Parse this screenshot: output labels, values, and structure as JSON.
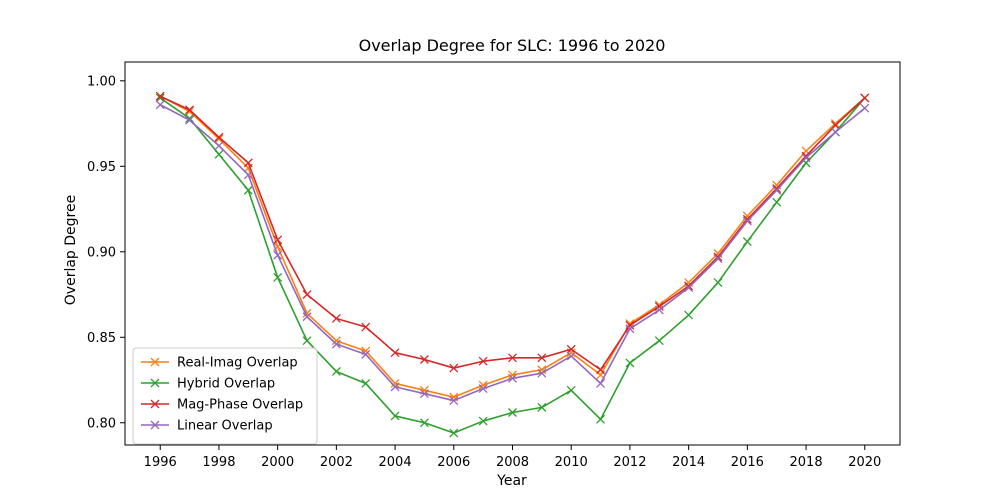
{
  "chart_data": {
    "type": "line",
    "title": "Overlap Degree for SLC: 1996 to 2020",
    "xlabel": "Year",
    "ylabel": "Overlap Degree",
    "xlim": [
      1994.8,
      2021.2
    ],
    "ylim": [
      0.787,
      1.011
    ],
    "x_ticks": [
      1996,
      1998,
      2000,
      2002,
      2004,
      2006,
      2008,
      2010,
      2012,
      2014,
      2016,
      2018,
      2020
    ],
    "x_tick_labels": [
      "1996",
      "1998",
      "2000",
      "2002",
      "2004",
      "2006",
      "2008",
      "2010",
      "2012",
      "2014",
      "2016",
      "2018",
      "2020"
    ],
    "y_ticks": [
      0.8,
      0.85,
      0.9,
      0.95,
      1.0
    ],
    "y_tick_labels": [
      "0.80",
      "0.85",
      "0.90",
      "0.95",
      "1.00"
    ],
    "grid": false,
    "legend_position": "lower-left",
    "marker": "x",
    "x": [
      1996,
      1997,
      1998,
      1999,
      2000,
      2001,
      2002,
      2003,
      2004,
      2005,
      2006,
      2007,
      2008,
      2009,
      2010,
      2011,
      2012,
      2013,
      2014,
      2015,
      2016,
      2017,
      2018,
      2019,
      2020
    ],
    "series": [
      {
        "name": "Real-Imag Overlap",
        "color": "#ff7f0e",
        "values": [
          0.991,
          0.982,
          0.966,
          0.949,
          0.903,
          0.864,
          0.848,
          0.842,
          0.823,
          0.819,
          0.815,
          0.822,
          0.828,
          0.831,
          0.841,
          0.828,
          0.858,
          0.869,
          0.882,
          0.899,
          0.921,
          0.939,
          0.959,
          0.975,
          0.99
        ]
      },
      {
        "name": "Hybrid Overlap",
        "color": "#2ca02c",
        "values": [
          0.99,
          0.978,
          0.957,
          0.936,
          0.885,
          0.848,
          0.83,
          0.823,
          0.804,
          0.8,
          0.794,
          0.801,
          0.806,
          0.809,
          0.819,
          0.802,
          0.835,
          0.848,
          0.863,
          0.882,
          0.906,
          0.929,
          0.952,
          0.97,
          0.99
        ]
      },
      {
        "name": "Mag-Phase Overlap",
        "color": "#d62728",
        "values": [
          0.991,
          0.983,
          0.967,
          0.952,
          0.907,
          0.875,
          0.861,
          0.856,
          0.841,
          0.837,
          0.832,
          0.836,
          0.838,
          0.838,
          0.843,
          0.831,
          0.857,
          0.868,
          0.88,
          0.897,
          0.919,
          0.937,
          0.956,
          0.974,
          0.99
        ]
      },
      {
        "name": "Linear Overlap",
        "color": "#9467bd",
        "values": [
          0.986,
          0.977,
          0.962,
          0.945,
          0.898,
          0.862,
          0.846,
          0.84,
          0.821,
          0.817,
          0.813,
          0.82,
          0.826,
          0.829,
          0.839,
          0.823,
          0.855,
          0.866,
          0.879,
          0.896,
          0.918,
          0.936,
          0.955,
          0.97,
          0.984
        ]
      }
    ]
  }
}
